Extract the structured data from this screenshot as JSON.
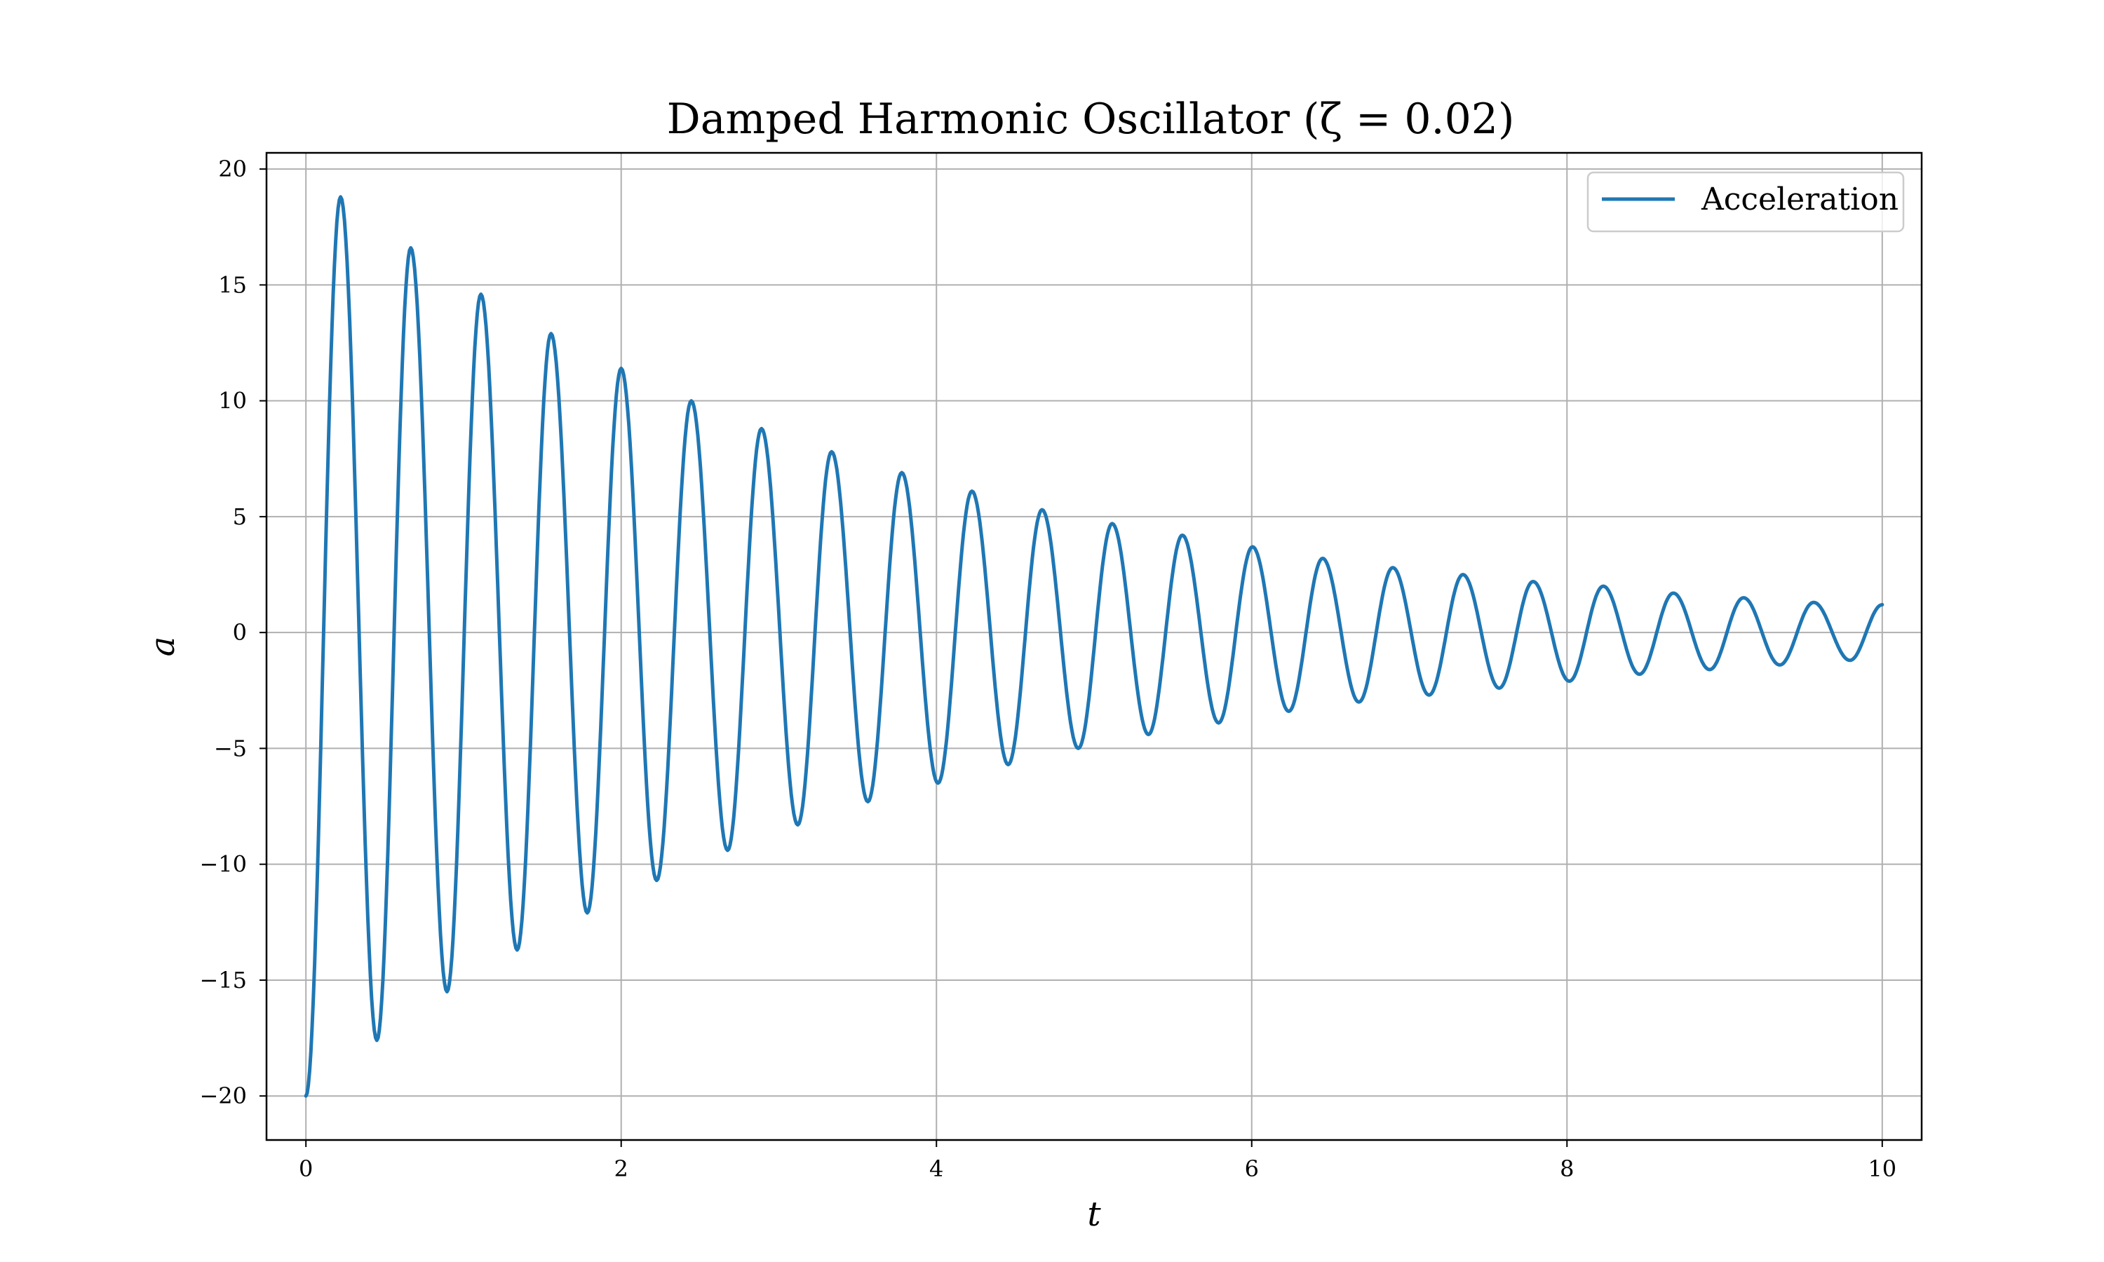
{
  "chart_data": {
    "type": "line",
    "title": "Damped Harmonic Oscillator (ζ = 0.02)",
    "xlabel": "t",
    "ylabel": "a",
    "xlim": [
      -0.25,
      10.25
    ],
    "ylim": [
      -21.9,
      20.7
    ],
    "x_ticks": [
      0,
      2,
      4,
      6,
      8,
      10
    ],
    "x_tick_labels": [
      "0",
      "2",
      "4",
      "6",
      "8",
      "10"
    ],
    "y_ticks": [
      -20,
      -15,
      -10,
      -5,
      0,
      5,
      10,
      15,
      20
    ],
    "y_tick_labels": [
      "−20",
      "−15",
      "−10",
      "−5",
      "0",
      "5",
      "10",
      "15",
      "20"
    ],
    "grid": true,
    "legend_position": "top-right",
    "series": [
      {
        "name": "Acceleration",
        "color": "#1f77b4",
        "x": [
          0,
          0.22,
          0.45,
          0.665,
          0.895,
          1.11,
          1.34,
          1.555,
          1.785,
          2.0,
          2.225,
          2.445,
          2.675,
          2.89,
          3.12,
          3.335,
          3.565,
          3.78,
          4.01,
          4.225,
          4.455,
          4.67,
          4.9,
          5.115,
          5.345,
          5.56,
          5.79,
          6.005,
          6.235,
          6.45,
          6.68,
          6.895,
          7.125,
          7.34,
          7.57,
          7.785,
          8.015,
          8.23,
          8.46,
          8.675,
          8.905,
          9.12,
          9.35,
          9.565,
          9.795,
          10.0
        ],
        "y": [
          -20,
          18.8,
          -17.6,
          16.6,
          -15.5,
          14.6,
          -13.7,
          12.9,
          -12.1,
          11.4,
          -10.7,
          10.0,
          -9.4,
          8.8,
          -8.3,
          7.8,
          -7.3,
          6.9,
          -6.5,
          6.1,
          -5.7,
          5.3,
          -5.0,
          4.7,
          -4.4,
          4.2,
          -3.9,
          3.7,
          -3.4,
          3.2,
          -3.0,
          2.8,
          -2.7,
          2.5,
          -2.4,
          2.2,
          -2.1,
          2.0,
          -1.8,
          1.7,
          -1.6,
          1.5,
          -1.4,
          1.3,
          -1.2,
          1.2
        ]
      }
    ]
  }
}
